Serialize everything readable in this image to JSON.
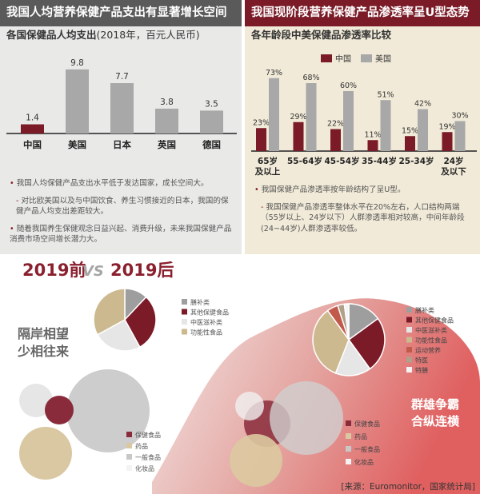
{
  "left_panel": {
    "header": "我国人均营养保健产品支出有显著增长空间",
    "subtitle": "各国保健品人均支出",
    "subtitle_unit": "(2018年，百元人民币)",
    "notes": [
      "我国人均保健产品支出水平低于发达国家，成长空间大。",
      "对比欧美国以及与中国饮食、养生习惯接近的日本，我国的保健产品人均支出差距较大。",
      "随着我国养生保健观念日益兴起、消费升级，未来我国保健产品消费市场空间增长潜力大。"
    ]
  },
  "right_panel": {
    "header": "我国现阶段营养保健产品渗透率呈U型态势",
    "subtitle": "各年龄段中美保健品渗透率比较",
    "notes": [
      "我国保健产品渗透率按年龄结构了呈U型。",
      "我国保健产品渗透率整体水平在20%左右，人口结构两端（55岁以上、24岁以下）人群渗透率相对较高，中间年龄段(24~44岁)人群渗透率较低。"
    ]
  },
  "bottom": {
    "era_before": "2019前",
    "vs": "VS",
    "era_after": "2019后",
    "slogan_left": [
      "隔岸相望",
      "少相往来"
    ],
    "slogan_right": [
      "群雄争霸",
      "合纵连横"
    ],
    "pie_before_legend": [
      "膳补类",
      "其他保健食品",
      "中医滋补类",
      "功能性食品"
    ],
    "pie_after_legend": [
      "膳补类",
      "其他保健食品",
      "中医滋补类",
      "功能性食品",
      "运动营养",
      "特医",
      "特膳"
    ],
    "bubble_legend": [
      "保健食品",
      "药品",
      "一般食品",
      "化妆品"
    ],
    "source": "[来源：Euromonitor，国家统计局]"
  },
  "colors": {
    "china": "#7a1b27",
    "usa": "#a8a8a8",
    "gray": "#9e9e9e",
    "tan": "#cdb98f",
    "light": "#e6e6e6"
  },
  "chart_data": [
    {
      "type": "bar",
      "title": "各国保健品人均支出",
      "categories": [
        "中国",
        "美国",
        "日本",
        "英国",
        "德国"
      ],
      "values": [
        1.4,
        9.8,
        7.7,
        3.8,
        3.5
      ],
      "ylim": [
        0,
        11
      ],
      "bar_colors": [
        "#7a1b27",
        "#a8a8a8",
        "#a8a8a8",
        "#a8a8a8",
        "#a8a8a8"
      ]
    },
    {
      "type": "bar",
      "title": "各年龄段中美保健品渗透率比较",
      "categories": [
        "65岁\n及以上",
        "55-64岁",
        "45-54岁",
        "35-44岁",
        "25-34岁",
        "24岁\n及以下"
      ],
      "series": [
        {
          "name": "中国",
          "values": [
            23,
            29,
            22,
            11,
            15,
            19
          ]
        },
        {
          "name": "美国",
          "values": [
            73,
            68,
            60,
            51,
            42,
            30
          ]
        }
      ],
      "value_suffix": "%",
      "ylim": [
        0,
        80
      ],
      "legend": "top-left"
    },
    {
      "type": "pie",
      "title": "2019前",
      "slices": [
        {
          "label": "膳补类",
          "value": 12,
          "color": "#9e9e9e"
        },
        {
          "label": "其他保健食品",
          "value": 30,
          "color": "#7a1b27"
        },
        {
          "label": "中医滋补类",
          "value": 25,
          "color": "#e6e6e6"
        },
        {
          "label": "功能性食品",
          "value": 33,
          "color": "#cdb98f"
        }
      ]
    },
    {
      "type": "pie",
      "title": "2019后",
      "slices": [
        {
          "label": "膳补类",
          "value": 15,
          "color": "#9e9e9e"
        },
        {
          "label": "其他保健食品",
          "value": 25,
          "color": "#7a1b27"
        },
        {
          "label": "中医滋补类",
          "value": 16,
          "color": "#e6e6e6"
        },
        {
          "label": "功能性食品",
          "value": 34,
          "color": "#cdb98f"
        },
        {
          "label": "运动营养",
          "value": 5,
          "color": "#c25a4c"
        },
        {
          "label": "特医",
          "value": 3,
          "color": "#b0a08a"
        },
        {
          "label": "特膳",
          "value": 2,
          "color": "#f4f4f4"
        }
      ]
    }
  ]
}
